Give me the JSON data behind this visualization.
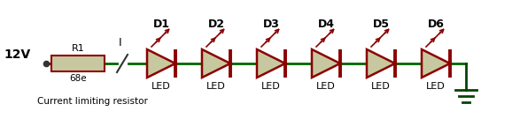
{
  "bg_color": "#ffffff",
  "green": "#006600",
  "dark_green": "#004400",
  "red_dark": "#8B0000",
  "resistor_fill": "#c8c8a0",
  "led_fill": "#c8c8a0",
  "text_color": "#000000",
  "voltage_label": "12V",
  "resistor_label": "R1",
  "resistor_value": "68e",
  "current_label": "I",
  "bottom_label": "Current limiting resistor",
  "led_labels": [
    "D1",
    "D2",
    "D3",
    "D4",
    "D5",
    "D6"
  ],
  "led_sublabels": [
    "LED",
    "LED",
    "LED",
    "LED",
    "LED",
    "LED"
  ],
  "num_leds": 6,
  "fig_width": 5.87,
  "fig_height": 1.35,
  "dpi": 100
}
